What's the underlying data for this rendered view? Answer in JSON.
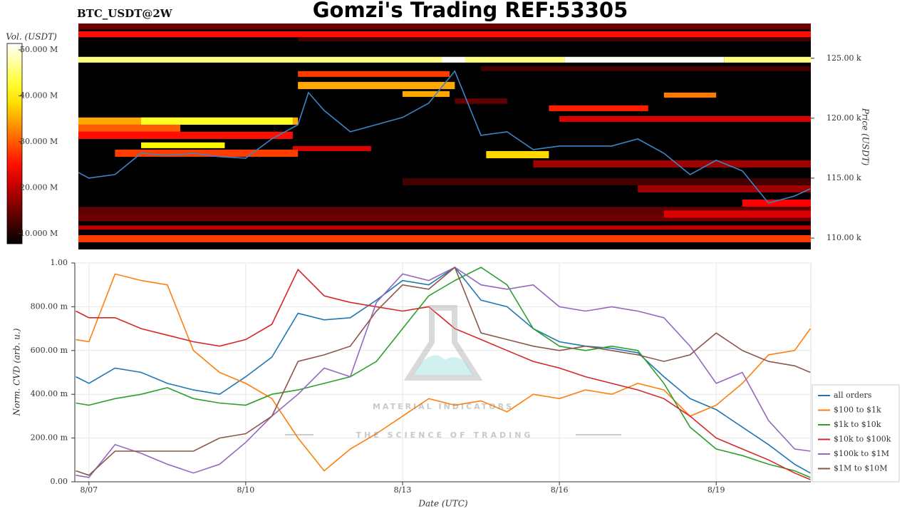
{
  "header": {
    "title": "Gomzi's Trading REF:53305",
    "pair": "BTC_USDT@2W"
  },
  "watermark": {
    "title": "MATERIAL INDICATORS",
    "subtitle": "THE SCIENCE OF TRADING"
  },
  "chart_data": [
    {
      "type": "heatmap",
      "y_label": "Price (USDT)",
      "colorbar_label": "Vol. (USDT)",
      "colormap": "hot",
      "xlim": [
        -0.2,
        13.81
      ],
      "ylim": [
        109050,
        127900
      ],
      "yticks": [
        {
          "value": 110000,
          "label": "110.00 k"
        },
        {
          "value": 115000,
          "label": "115.00 k"
        },
        {
          "value": 120000,
          "label": "120.00 k"
        },
        {
          "value": 125000,
          "label": "125.00 k"
        }
      ],
      "clim": [
        7.8,
        51.4
      ],
      "cticks": [
        {
          "value": 10,
          "label": "10.000 M"
        },
        {
          "value": 20,
          "label": "20.000 M"
        },
        {
          "value": 30,
          "label": "30.000 M"
        },
        {
          "value": 40,
          "label": "40.000 M"
        },
        {
          "value": 50,
          "label": "50.000 M"
        }
      ],
      "bands": [
        {
          "x": [
            -0.2,
            13.81
          ],
          "price": [
            127400,
            127900
          ],
          "value": 15
        },
        {
          "x": [
            -0.2,
            13.81
          ],
          "price": [
            126750,
            127250
          ],
          "value": 25
        },
        {
          "x": [
            4,
            13.81
          ],
          "price": [
            126400,
            126760
          ],
          "value": 12
        },
        {
          "x": [
            -0.2,
            6.75
          ],
          "price": [
            124640,
            125120
          ],
          "value": 46
        },
        {
          "x": [
            6.75,
            7.2
          ],
          "price": [
            124640,
            125120
          ],
          "value": 51
        },
        {
          "x": [
            7.2,
            9.1
          ],
          "price": [
            124640,
            125120
          ],
          "value": 46
        },
        {
          "x": [
            9.1,
            12.15
          ],
          "price": [
            124640,
            125120
          ],
          "value": 51
        },
        {
          "x": [
            12.15,
            13.81
          ],
          "price": [
            124640,
            125120
          ],
          "value": 46
        },
        {
          "x": [
            7.5,
            13.81
          ],
          "price": [
            123930,
            124340
          ],
          "value": 12
        },
        {
          "x": [
            4,
            6.9
          ],
          "price": [
            123450,
            123930
          ],
          "value": 28
        },
        {
          "x": [
            4,
            7
          ],
          "price": [
            122430,
            123030
          ],
          "value": 35
        },
        {
          "x": [
            6,
            6.9
          ],
          "price": [
            121780,
            122260
          ],
          "value": 35
        },
        {
          "x": [
            11,
            12
          ],
          "price": [
            121720,
            122140
          ],
          "value": 32
        },
        {
          "x": [
            7,
            8
          ],
          "price": [
            121200,
            121650
          ],
          "value": 14
        },
        {
          "x": [
            8.8,
            10.7
          ],
          "price": [
            120590,
            121070
          ],
          "value": 26
        },
        {
          "x": [
            -0.2,
            4
          ],
          "price": [
            119460,
            120060
          ],
          "value": 35
        },
        {
          "x": [
            1,
            3.9
          ],
          "price": [
            119460,
            120060
          ],
          "value": 42
        },
        {
          "x": [
            9,
            13.81
          ],
          "price": [
            119700,
            120170
          ],
          "value": 22
        },
        {
          "x": [
            -0.2,
            1.75
          ],
          "price": [
            118870,
            119460
          ],
          "value": 30
        },
        {
          "x": [
            -0.2,
            3.9
          ],
          "price": [
            118270,
            118870
          ],
          "value": 25
        },
        {
          "x": [
            1,
            2.6
          ],
          "price": [
            117500,
            117980
          ],
          "value": 40
        },
        {
          "x": [
            3.9,
            5.4
          ],
          "price": [
            117260,
            117680
          ],
          "value": 22
        },
        {
          "x": [
            0.5,
            4
          ],
          "price": [
            116780,
            117380
          ],
          "value": 28
        },
        {
          "x": [
            7.6,
            8.8
          ],
          "price": [
            116660,
            117260
          ],
          "value": 38
        },
        {
          "x": [
            8.5,
            13.81
          ],
          "price": [
            115890,
            116490
          ],
          "value": 18
        },
        {
          "x": [
            6,
            13.81
          ],
          "price": [
            114400,
            115000
          ],
          "value": 12
        },
        {
          "x": [
            10.5,
            13.81
          ],
          "price": [
            113810,
            114400
          ],
          "value": 18
        },
        {
          "x": [
            12.5,
            13.81
          ],
          "price": [
            112620,
            113210
          ],
          "value": 24
        },
        {
          "x": [
            -0.2,
            13.81
          ],
          "price": [
            112000,
            112600
          ],
          "value": 14
        },
        {
          "x": [
            -0.2,
            13.81
          ],
          "price": [
            111400,
            112000
          ],
          "value": 15
        },
        {
          "x": [
            11,
            13.81
          ],
          "price": [
            111700,
            112300
          ],
          "value": 22
        },
        {
          "x": [
            -0.2,
            13.81
          ],
          "price": [
            110700,
            111050
          ],
          "value": 20
        },
        {
          "x": [
            -0.2,
            13.81
          ],
          "price": [
            109650,
            110240
          ],
          "value": 28
        }
      ],
      "price_line": {
        "color": "#3a86c8",
        "x": [
          -0.2,
          0,
          0.5,
          1,
          1.5,
          2,
          2.5,
          3,
          3.5,
          4,
          4.2,
          4.5,
          5,
          5.5,
          6,
          6.5,
          7,
          7.5,
          8,
          8.5,
          9,
          9.5,
          10,
          10.5,
          11,
          11.5,
          12,
          12.5,
          13,
          13.5,
          13.8
        ],
        "values": [
          115480,
          115000,
          115300,
          117080,
          116900,
          117080,
          116790,
          116670,
          118270,
          119460,
          122140,
          120650,
          118870,
          119460,
          120060,
          121250,
          123930,
          118570,
          118870,
          117380,
          117680,
          117680,
          117680,
          118270,
          117080,
          115300,
          116490,
          115600,
          112920,
          113510,
          114110
        ]
      }
    },
    {
      "type": "line",
      "x_label": "Date (UTC)",
      "y_label": "Norm. CVD (arb. u.)",
      "grid": true,
      "legend": "right",
      "xlim": [
        -0.27,
        13.81
      ],
      "xticks": [
        {
          "value": 0,
          "label": "8/07"
        },
        {
          "value": 3,
          "label": "8/10"
        },
        {
          "value": 6,
          "label": "8/13"
        },
        {
          "value": 9,
          "label": "8/16"
        },
        {
          "value": 12,
          "label": "8/19"
        }
      ],
      "ylim": [
        0,
        1
      ],
      "yticks": [
        {
          "value": 0,
          "label": "0.00"
        },
        {
          "value": 0.2,
          "label": "200.00 m"
        },
        {
          "value": 0.4,
          "label": "400.00 m"
        },
        {
          "value": 0.6,
          "label": "600.00 m"
        },
        {
          "value": 0.8,
          "label": "800.00 m"
        },
        {
          "value": 1,
          "label": "1.00"
        }
      ],
      "x": [
        -0.25,
        0,
        0.5,
        1,
        1.5,
        2,
        2.5,
        3,
        3.5,
        4,
        4.5,
        5,
        5.5,
        6,
        6.5,
        7,
        7.5,
        8,
        8.5,
        9,
        9.5,
        10,
        10.5,
        11,
        11.5,
        12,
        12.5,
        13,
        13.5,
        13.8
      ],
      "series": [
        {
          "name": "all orders",
          "color": "#1f77b4",
          "values": [
            0.48,
            0.45,
            0.52,
            0.5,
            0.45,
            0.42,
            0.4,
            0.48,
            0.57,
            0.77,
            0.74,
            0.75,
            0.83,
            0.92,
            0.9,
            0.98,
            0.83,
            0.8,
            0.7,
            0.64,
            0.62,
            0.61,
            0.59,
            0.48,
            0.38,
            0.33,
            0.25,
            0.17,
            0.08,
            0.04
          ]
        },
        {
          "name": "$100 to $1k",
          "color": "#ff7f0e",
          "values": [
            0.65,
            0.64,
            0.95,
            0.92,
            0.9,
            0.6,
            0.5,
            0.45,
            0.38,
            0.2,
            0.05,
            0.15,
            0.22,
            0.3,
            0.38,
            0.35,
            0.37,
            0.32,
            0.4,
            0.38,
            0.42,
            0.4,
            0.45,
            0.42,
            0.3,
            0.35,
            0.45,
            0.58,
            0.6,
            0.7
          ]
        },
        {
          "name": "$1k to $10k",
          "color": "#2ca02c",
          "values": [
            0.36,
            0.35,
            0.38,
            0.4,
            0.43,
            0.38,
            0.36,
            0.35,
            0.4,
            0.42,
            0.45,
            0.48,
            0.55,
            0.7,
            0.85,
            0.92,
            0.98,
            0.9,
            0.7,
            0.62,
            0.6,
            0.62,
            0.6,
            0.45,
            0.25,
            0.15,
            0.12,
            0.08,
            0.05,
            0.02
          ]
        },
        {
          "name": "$10k to $100k",
          "color": "#d62728",
          "values": [
            0.78,
            0.75,
            0.75,
            0.7,
            0.67,
            0.64,
            0.62,
            0.65,
            0.72,
            0.97,
            0.85,
            0.82,
            0.8,
            0.78,
            0.8,
            0.7,
            0.65,
            0.6,
            0.55,
            0.52,
            0.48,
            0.45,
            0.42,
            0.38,
            0.3,
            0.2,
            0.15,
            0.1,
            0.04,
            0.01
          ]
        },
        {
          "name": "$100k to $1M",
          "color": "#9467bd",
          "values": [
            0.03,
            0.02,
            0.17,
            0.13,
            0.08,
            0.04,
            0.08,
            0.18,
            0.3,
            0.4,
            0.52,
            0.48,
            0.82,
            0.95,
            0.92,
            0.98,
            0.9,
            0.88,
            0.9,
            0.8,
            0.78,
            0.8,
            0.78,
            0.75,
            0.62,
            0.45,
            0.5,
            0.28,
            0.15,
            0.14
          ]
        },
        {
          "name": "$1M to $10M",
          "color": "#8c564b",
          "values": [
            0.05,
            0.03,
            0.14,
            0.14,
            0.14,
            0.14,
            0.2,
            0.22,
            0.3,
            0.55,
            0.58,
            0.62,
            0.78,
            0.9,
            0.88,
            0.98,
            0.68,
            0.65,
            0.62,
            0.6,
            0.62,
            0.6,
            0.58,
            0.55,
            0.58,
            0.68,
            0.6,
            0.55,
            0.53,
            0.5
          ]
        }
      ]
    }
  ]
}
